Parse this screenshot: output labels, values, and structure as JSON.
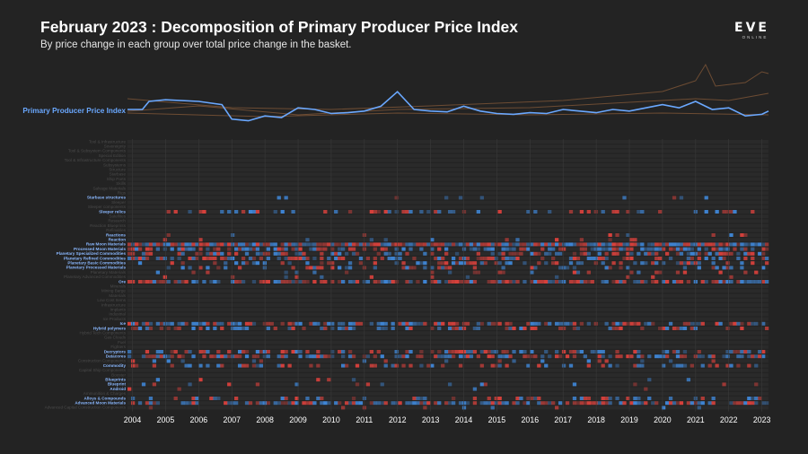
{
  "header": {
    "title": "February 2023 : Decomposition of Primary Producer Price Index",
    "subtitle": "By price change in each group over total price change in the basket."
  },
  "logo": {
    "text": "EVE",
    "subtext": "ONLINE"
  },
  "colors": {
    "background": "#232323",
    "index_line": "#6aa8ff",
    "increase": "#d9413c",
    "decrease": "#3f86d6",
    "context_lines": "#7a5436"
  },
  "chart_data": {
    "type": "heatmap",
    "title": "February 2023 : Decomposition of Primary Producer Price Index",
    "index_series_label": "Primary Producer Price Index",
    "x_tick_labels": [
      "2004",
      "2005",
      "2006",
      "2007",
      "2008",
      "2009",
      "2010",
      "2011",
      "2012",
      "2013",
      "2014",
      "2015",
      "2016",
      "2017",
      "2018",
      "2019",
      "2020",
      "2021",
      "2022",
      "2023"
    ],
    "xlim": [
      2003.85,
      2023.2
    ],
    "index_series": [
      [
        2003.85,
        1.0
      ],
      [
        2004.3,
        1.0
      ],
      [
        2004.5,
        1.1
      ],
      [
        2005,
        1.12
      ],
      [
        2006,
        1.1
      ],
      [
        2006.7,
        1.06
      ],
      [
        2007,
        0.88
      ],
      [
        2007.5,
        0.86
      ],
      [
        2008,
        0.92
      ],
      [
        2008.5,
        0.9
      ],
      [
        2009,
        1.02
      ],
      [
        2009.5,
        1.0
      ],
      [
        2010,
        0.95
      ],
      [
        2010.5,
        0.96
      ],
      [
        2011,
        0.98
      ],
      [
        2011.5,
        1.04
      ],
      [
        2012,
        1.22
      ],
      [
        2012.5,
        1.0
      ],
      [
        2013,
        0.98
      ],
      [
        2013.5,
        0.97
      ],
      [
        2014,
        1.04
      ],
      [
        2014.5,
        0.98
      ],
      [
        2015,
        0.95
      ],
      [
        2015.5,
        0.94
      ],
      [
        2016,
        0.96
      ],
      [
        2016.5,
        0.95
      ],
      [
        2017,
        1.0
      ],
      [
        2017.5,
        0.98
      ],
      [
        2018,
        0.96
      ],
      [
        2018.5,
        1.0
      ],
      [
        2019,
        0.98
      ],
      [
        2019.5,
        1.02
      ],
      [
        2020,
        1.06
      ],
      [
        2020.5,
        1.02
      ],
      [
        2021,
        1.1
      ],
      [
        2021.5,
        1.0
      ],
      [
        2022,
        1.02
      ],
      [
        2022.5,
        0.92
      ],
      [
        2023,
        0.94
      ],
      [
        2023.2,
        0.98
      ]
    ],
    "rows": [
      {
        "label": "Tool & Infrastructure",
        "highlight": false,
        "activity": 0
      },
      {
        "label": "Sovereignty",
        "highlight": false,
        "activity": 0
      },
      {
        "label": "Tool & Subsystem Components",
        "highlight": false,
        "activity": 0
      },
      {
        "label": "Special Edition",
        "highlight": false,
        "activity": 0
      },
      {
        "label": "Tool & Infrastructure Components",
        "highlight": false,
        "activity": 0
      },
      {
        "label": "Subsystems",
        "highlight": false,
        "activity": 0
      },
      {
        "label": "Structure",
        "highlight": false,
        "activity": 0
      },
      {
        "label": "Starbase",
        "highlight": false,
        "activity": 0
      },
      {
        "label": "Ship Parts",
        "highlight": false,
        "activity": 0
      },
      {
        "label": "Skills",
        "highlight": false,
        "activity": 0
      },
      {
        "label": "Salvage Materials",
        "highlight": false,
        "activity": 0
      },
      {
        "label": "Rigs",
        "highlight": false,
        "activity": 0
      },
      {
        "label": "Starbase structures",
        "highlight": true,
        "activity": 0.05
      },
      {
        "label": "Sleeper",
        "highlight": false,
        "activity": 0
      },
      {
        "label": "Sleeper components",
        "highlight": false,
        "activity": 0
      },
      {
        "label": "Sleeper relics",
        "highlight": true,
        "activity": 0.35
      },
      {
        "label": "Satellites",
        "highlight": false,
        "activity": 0
      },
      {
        "label": "Research",
        "highlight": false,
        "activity": 0
      },
      {
        "label": "Reaction Blueprints",
        "highlight": false,
        "activity": 0
      },
      {
        "label": "Refinables",
        "highlight": false,
        "activity": 0
      },
      {
        "label": "Reactions",
        "highlight": true,
        "activity": 0.05
      },
      {
        "label": "Reaction",
        "highlight": true,
        "activity": 0.05
      },
      {
        "label": "Raw Moon Materials",
        "highlight": true,
        "activity": 0.97
      },
      {
        "label": "Processed Moon Materials",
        "highlight": true,
        "activity": 0.6
      },
      {
        "label": "Planetary Specialized Commodities",
        "highlight": true,
        "activity": 0.55
      },
      {
        "label": "Planetary Refined Commodities",
        "highlight": true,
        "activity": 0.5
      },
      {
        "label": "Planetary Basic Commodities",
        "highlight": true,
        "activity": 0.3
      },
      {
        "label": "Planetary Processed Materials",
        "highlight": true,
        "activity": 0.3
      },
      {
        "label": "Planetary Materials",
        "highlight": false,
        "activity": 0.1
      },
      {
        "label": "Planetary Advanced Commodities",
        "highlight": false,
        "activity": 0.05
      },
      {
        "label": "Ore",
        "highlight": true,
        "activity": 0.8
      },
      {
        "label": "Minerals",
        "highlight": false,
        "activity": 0
      },
      {
        "label": "Mining Barge",
        "highlight": false,
        "activity": 0
      },
      {
        "label": "Materials",
        "highlight": false,
        "activity": 0
      },
      {
        "label": "Low Cost Items",
        "highlight": false,
        "activity": 0
      },
      {
        "label": "Infrastructure",
        "highlight": false,
        "activity": 0
      },
      {
        "label": "Implants",
        "highlight": false,
        "activity": 0
      },
      {
        "label": "Industrial",
        "highlight": false,
        "activity": 0
      },
      {
        "label": "Ice Products",
        "highlight": false,
        "activity": 0
      },
      {
        "label": "Ice",
        "highlight": true,
        "activity": 0.65
      },
      {
        "label": "Hybrid polymers",
        "highlight": true,
        "activity": 0.45
      },
      {
        "label": "Hybrid Tech Components",
        "highlight": false,
        "activity": 0
      },
      {
        "label": "Gas Clouds",
        "highlight": false,
        "activity": 0
      },
      {
        "label": "Fuel",
        "highlight": false,
        "activity": 0
      },
      {
        "label": "Fighters",
        "highlight": false,
        "activity": 0
      },
      {
        "label": "Decryptors",
        "highlight": true,
        "activity": 0.55
      },
      {
        "label": "Datacores",
        "highlight": true,
        "activity": 0.6
      },
      {
        "label": "Construction Components",
        "highlight": false,
        "activity": 0.1
      },
      {
        "label": "Commodity",
        "highlight": true,
        "activity": 0.3
      },
      {
        "label": "Capital Ship Components",
        "highlight": false,
        "activity": 0
      },
      {
        "label": "Booster",
        "highlight": false,
        "activity": 0
      },
      {
        "label": "Blueprints",
        "highlight": true,
        "activity": 0.05
      },
      {
        "label": "Blueprint",
        "highlight": true,
        "activity": 0.05
      },
      {
        "label": "Android",
        "highlight": true,
        "activity": 0.05
      },
      {
        "label": "Ammunition & Charges",
        "highlight": false,
        "activity": 0
      },
      {
        "label": "Alloys & Compounds",
        "highlight": true,
        "activity": 0.3
      },
      {
        "label": "Advanced Moon Materials",
        "highlight": true,
        "activity": 0.7
      },
      {
        "label": "Advanced Capital Construction Components",
        "highlight": false,
        "activity": 0.05
      }
    ]
  }
}
